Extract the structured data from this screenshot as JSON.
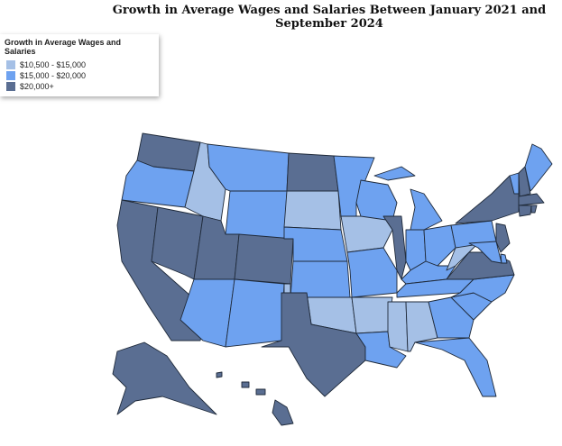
{
  "title": "Growth in Average Wages and Salaries Between January 2021 and September 2024",
  "legend": {
    "title": "Growth in Average Wages and Salaries",
    "items": [
      {
        "label": "$10,500 - $15,000",
        "color": "#a5c0e6"
      },
      {
        "label": "$15,000 - $20,000",
        "color": "#6ea2f0"
      },
      {
        "label": "$20,000+",
        "color": "#5a6e92"
      }
    ]
  },
  "regions": [
    2,
    1,
    2,
    2,
    0,
    1,
    1,
    2,
    2,
    1,
    1,
    2,
    0,
    1,
    1,
    0,
    2,
    1,
    0,
    1,
    0,
    1,
    1,
    2,
    1,
    1,
    1,
    1,
    1,
    0,
    0,
    1,
    1,
    1,
    1,
    2,
    0,
    1,
    2,
    1,
    2,
    1,
    2,
    2,
    2,
    2,
    1,
    1,
    2,
    2
  ]
}
